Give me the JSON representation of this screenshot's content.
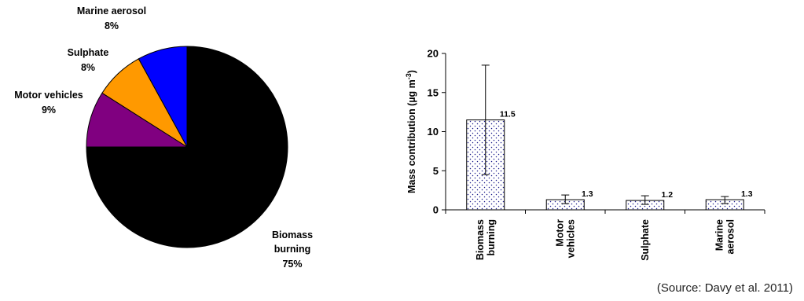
{
  "chart_data": [
    {
      "type": "pie",
      "categories": [
        "Marine aerosol",
        "Sulphate",
        "Motor vehicles",
        "Biomass burning"
      ],
      "values": [
        8,
        8,
        9,
        75
      ],
      "value_labels": [
        "8%",
        "8%",
        "9%",
        "75%"
      ],
      "colors": [
        "#0000ff",
        "#ff9900",
        "#800080",
        "#000000"
      ],
      "title": "",
      "legend": "none"
    },
    {
      "type": "bar",
      "categories": [
        "Biomass burning",
        "Motor vehicles",
        "Sulphate",
        "Marine aerosol"
      ],
      "values": [
        11.5,
        1.3,
        1.2,
        1.3
      ],
      "value_labels": [
        "11.5",
        "1.3",
        "1.2",
        "1.3"
      ],
      "error_low": [
        4.5,
        0.8,
        0.7,
        0.8
      ],
      "error_high": [
        18.5,
        1.9,
        1.8,
        1.7
      ],
      "ylabel_main": "Mass contribution (µg m",
      "ylabel_sup": "-3",
      "ylabel_close": ")",
      "xlabel": "",
      "ylim": [
        0,
        20
      ],
      "yticks": [
        0,
        5,
        10,
        15,
        20
      ],
      "bar_fill": "dotted",
      "title": "",
      "legend": "none"
    }
  ],
  "source": "(Source: Davy et al. 2011)"
}
